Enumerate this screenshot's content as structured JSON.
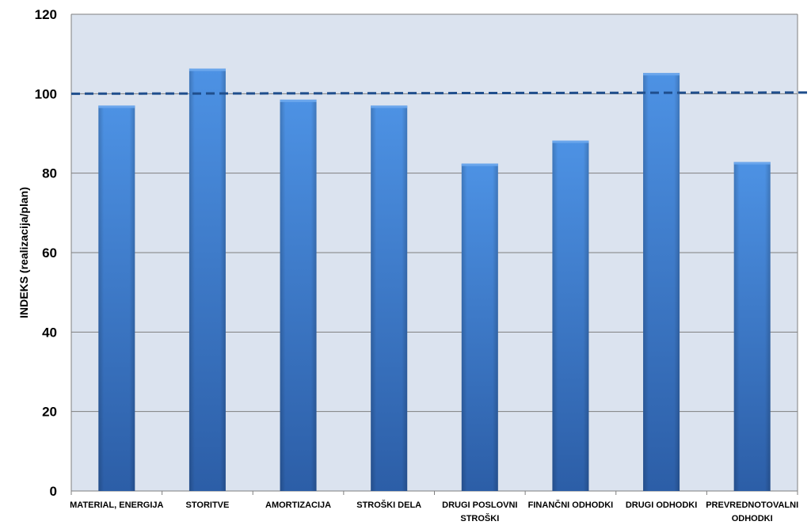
{
  "chart_data": {
    "type": "bar",
    "categories": [
      [
        "MATERIAL, ENERGIJA"
      ],
      [
        "STORITVE"
      ],
      [
        "AMORTIZACIJA"
      ],
      [
        "STROŠKI DELA"
      ],
      [
        "DRUGI POSLOVNI",
        "STROŠKI"
      ],
      [
        "FINANČNI ODHODKI"
      ],
      [
        "DRUGI ODHODKI"
      ],
      [
        "PREVREDNOTOVALNI",
        "ODHODKI"
      ]
    ],
    "values": [
      97,
      106.3,
      98.5,
      97,
      82.4,
      88.2,
      105.2,
      82.8
    ],
    "ylabel": "INDEKS  (realizacija/plan)",
    "ylim": [
      0,
      120
    ],
    "yticks": [
      0,
      20,
      40,
      60,
      80,
      100,
      120
    ],
    "reference_line": 100,
    "grid": true,
    "colors": {
      "plot_bg": "#dbe3ef",
      "bar_light": "#4a8ee0",
      "bar_dark": "#2d5fa8",
      "gridline": "#7f7f7f",
      "reference_line": "#1f4e8c"
    }
  }
}
